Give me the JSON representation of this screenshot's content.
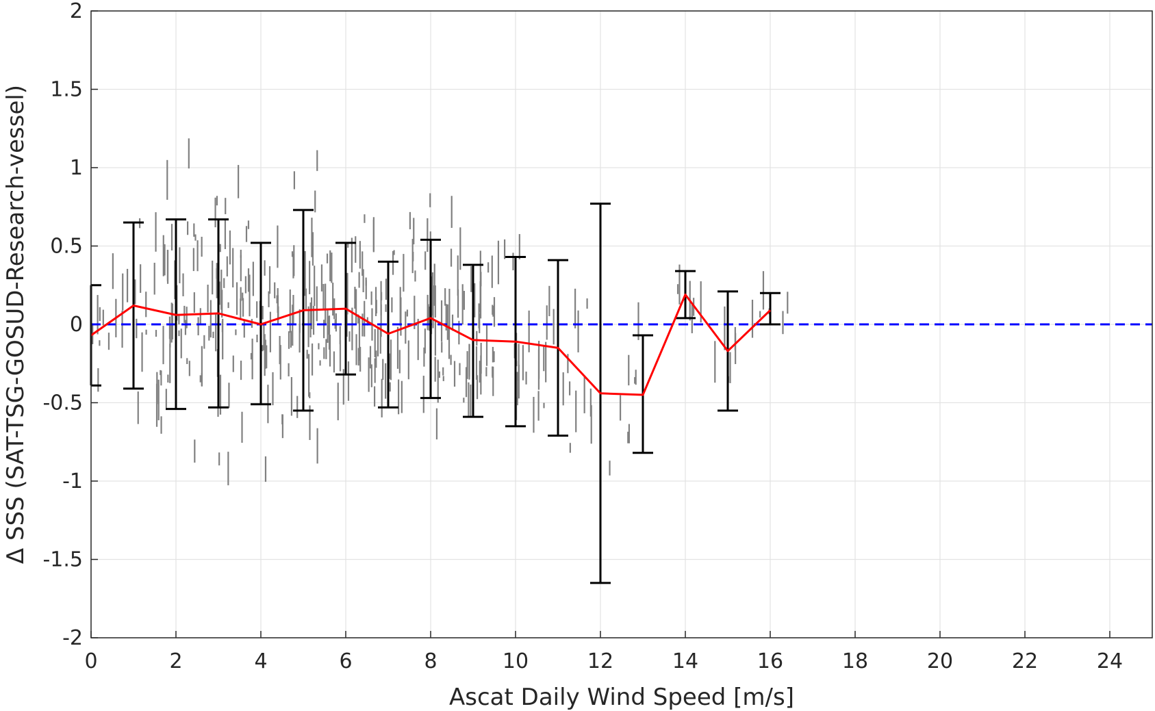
{
  "chart_data": {
    "type": "scatter",
    "xlabel": "Ascat Daily Wind Speed [m/s]",
    "ylabel": "Δ SSS (SAT-TSG-GOSUD-Research-vessel)",
    "xlim": [
      0,
      25
    ],
    "ylim": [
      -2,
      2
    ],
    "x_ticks": [
      "0",
      "2",
      "4",
      "6",
      "8",
      "10",
      "12",
      "14",
      "16",
      "18",
      "20",
      "22",
      "24"
    ],
    "y_ticks": [
      "-2",
      "-1.5",
      "-1",
      "-0.5",
      "0",
      "0.5",
      "1",
      "1.5",
      "2"
    ],
    "grid": true,
    "series": [
      {
        "kind": "mean-line",
        "color": "#ff0000",
        "x": [
          0,
          1,
          2,
          3,
          4,
          5,
          6,
          7,
          8,
          9,
          10,
          11,
          12,
          13,
          14,
          15,
          16
        ],
        "y": [
          -0.07,
          0.12,
          0.06,
          0.07,
          0.0,
          0.09,
          0.1,
          -0.06,
          0.04,
          -0.1,
          -0.11,
          -0.15,
          -0.44,
          -0.45,
          0.19,
          -0.17,
          0.09
        ]
      },
      {
        "kind": "error-bars",
        "color": "#000000",
        "x": [
          0,
          1,
          2,
          3,
          4,
          5,
          6,
          7,
          8,
          9,
          10,
          11,
          12,
          13,
          14,
          15,
          16
        ],
        "low": [
          -0.39,
          -0.41,
          -0.54,
          -0.53,
          -0.51,
          -0.55,
          -0.32,
          -0.53,
          -0.47,
          -0.59,
          -0.65,
          -0.71,
          -1.65,
          -0.82,
          0.04,
          -0.55,
          0.0
        ],
        "high": [
          0.25,
          0.65,
          0.67,
          0.67,
          0.52,
          0.73,
          0.52,
          0.4,
          0.54,
          0.38,
          0.43,
          0.41,
          0.77,
          -0.07,
          0.34,
          0.21,
          0.2
        ]
      },
      {
        "kind": "zero-reference",
        "color": "#0000ff",
        "y": 0
      },
      {
        "kind": "scatter",
        "color": "#808080",
        "x_range": [
          0,
          16.5
        ],
        "y_range": [
          -2,
          2
        ]
      }
    ]
  }
}
